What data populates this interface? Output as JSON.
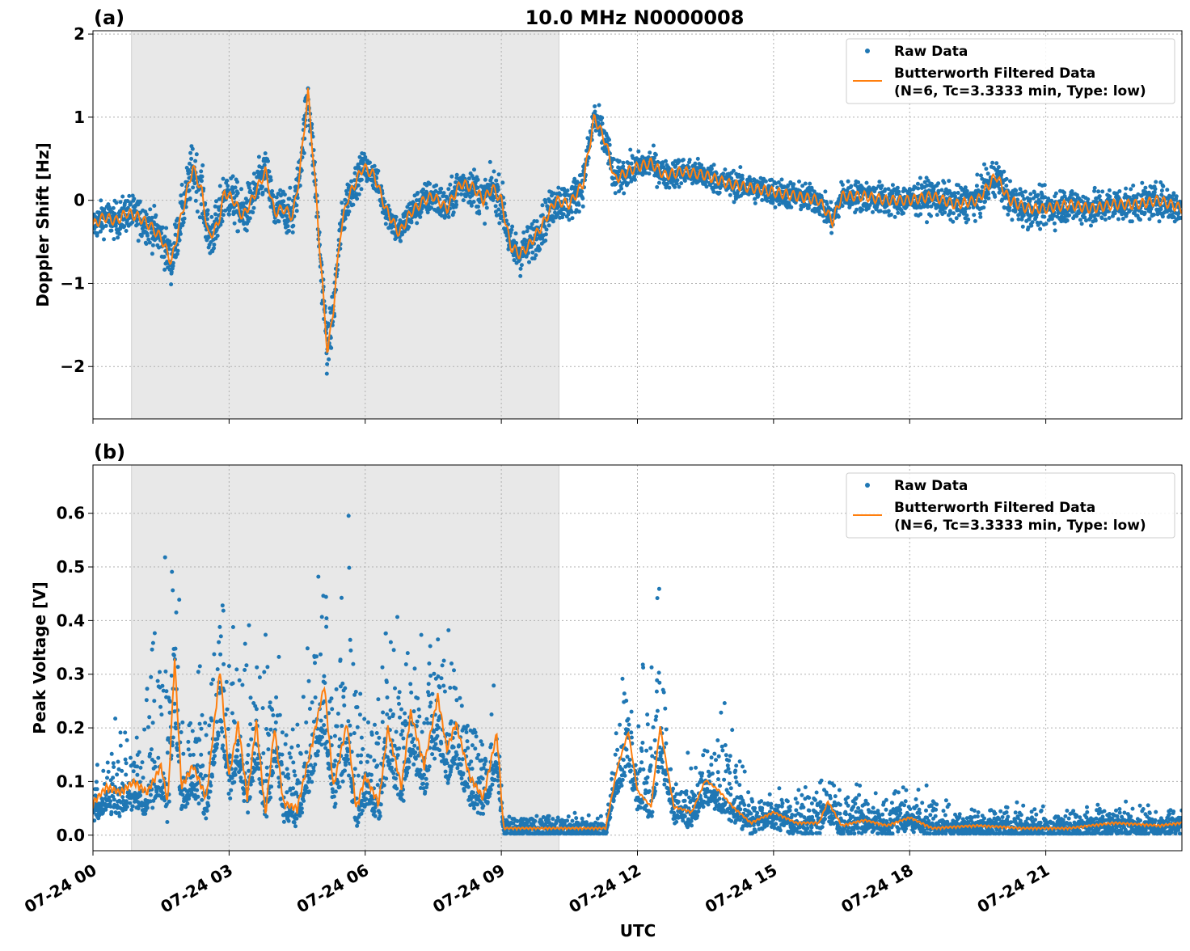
{
  "title": "10.0 MHz N0000008",
  "xlabel": "UTC",
  "x_ticks": [
    "07-24 00",
    "07-24 03",
    "07-24 06",
    "07-24 09",
    "07-24 12",
    "07-24 15",
    "07-24 18",
    "07-24 21"
  ],
  "x_tick_hours": [
    0,
    3,
    6,
    9,
    12,
    15,
    18,
    21
  ],
  "x_range_hours": [
    0,
    24
  ],
  "shaded_interval_hours": [
    0.85,
    10.27
  ],
  "colors": {
    "raw": "#1f77b4",
    "filtered": "#ff7f0e",
    "shade": "#e8e8e8",
    "grid": "#b0b0b0"
  },
  "legend": {
    "raw": "Raw Data",
    "filtered_line1": "Butterworth Filtered Data",
    "filtered_line2": "(N=6, Tc=3.3333 min, Type: low)",
    "placement": "upper right"
  },
  "chart_data": [
    {
      "panel_label": "(a)",
      "type": "scatter+line",
      "ylabel": "Doppler Shift [Hz]",
      "ylim": [
        -2.63,
        2.04
      ],
      "y_ticks": [
        -2,
        -1,
        0,
        1,
        2
      ],
      "y_tick_labels": [
        "−2",
        "−1",
        "0",
        "1",
        "2"
      ],
      "grid": true,
      "filtered": [
        [
          0,
          -0.3
        ],
        [
          0.25,
          -0.2
        ],
        [
          0.5,
          -0.25
        ],
        [
          0.75,
          -0.15
        ],
        [
          1.0,
          -0.2
        ],
        [
          1.25,
          -0.3
        ],
        [
          1.5,
          -0.45
        ],
        [
          1.73,
          -0.75
        ],
        [
          1.9,
          -0.3
        ],
        [
          2.2,
          0.4
        ],
        [
          2.4,
          0.1
        ],
        [
          2.55,
          -0.45
        ],
        [
          2.75,
          -0.3
        ],
        [
          2.9,
          0.1
        ],
        [
          3.1,
          0.0
        ],
        [
          3.3,
          -0.2
        ],
        [
          3.5,
          0.0
        ],
        [
          3.8,
          0.35
        ],
        [
          4.0,
          -0.15
        ],
        [
          4.2,
          -0.1
        ],
        [
          4.4,
          -0.2
        ],
        [
          4.55,
          0.3
        ],
        [
          4.74,
          1.3
        ],
        [
          4.9,
          0.2
        ],
        [
          5.0,
          -0.6
        ],
        [
          5.17,
          -1.85
        ],
        [
          5.3,
          -1.3
        ],
        [
          5.45,
          -0.4
        ],
        [
          5.6,
          0.0
        ],
        [
          5.95,
          0.4
        ],
        [
          6.2,
          0.3
        ],
        [
          6.45,
          -0.1
        ],
        [
          6.75,
          -0.4
        ],
        [
          7.0,
          -0.15
        ],
        [
          7.3,
          0.0
        ],
        [
          7.5,
          0.05
        ],
        [
          7.8,
          -0.1
        ],
        [
          8.1,
          0.2
        ],
        [
          8.4,
          0.15
        ],
        [
          8.6,
          0.0
        ],
        [
          8.8,
          0.15
        ],
        [
          9.0,
          0.0
        ],
        [
          9.2,
          -0.55
        ],
        [
          9.4,
          -0.65
        ],
        [
          9.6,
          -0.55
        ],
        [
          9.9,
          -0.3
        ],
        [
          10.2,
          0.0
        ],
        [
          10.5,
          -0.05
        ],
        [
          10.8,
          0.2
        ],
        [
          11.05,
          1.0
        ],
        [
          11.3,
          0.7
        ],
        [
          11.5,
          0.25
        ],
        [
          11.8,
          0.35
        ],
        [
          12.0,
          0.4
        ],
        [
          12.3,
          0.45
        ],
        [
          12.6,
          0.3
        ],
        [
          13.0,
          0.35
        ],
        [
          13.5,
          0.3
        ],
        [
          14.0,
          0.2
        ],
        [
          14.5,
          0.15
        ],
        [
          15.0,
          0.1
        ],
        [
          15.5,
          0.05
        ],
        [
          16.0,
          0.0
        ],
        [
          16.3,
          -0.25
        ],
        [
          16.5,
          0.05
        ],
        [
          17.0,
          0.05
        ],
        [
          17.5,
          0.0
        ],
        [
          18.0,
          0.0
        ],
        [
          18.5,
          0.05
        ],
        [
          19.0,
          -0.05
        ],
        [
          19.5,
          0.0
        ],
        [
          19.9,
          0.3
        ],
        [
          20.2,
          0.0
        ],
        [
          20.6,
          -0.1
        ],
        [
          21.0,
          -0.1
        ],
        [
          21.5,
          -0.05
        ],
        [
          22.0,
          -0.1
        ],
        [
          22.5,
          -0.05
        ],
        [
          23.0,
          -0.05
        ],
        [
          23.5,
          0.0
        ],
        [
          24.0,
          -0.1
        ]
      ],
      "raw_spread": [
        [
          0,
          0.35
        ],
        [
          1.7,
          0.45
        ],
        [
          2.2,
          0.55
        ],
        [
          4.7,
          0.45
        ],
        [
          5.17,
          0.55
        ],
        [
          6.0,
          0.3
        ],
        [
          9.3,
          0.45
        ],
        [
          10.5,
          0.4
        ],
        [
          11.1,
          0.4
        ],
        [
          12,
          0.3
        ],
        [
          16,
          0.3
        ],
        [
          19.9,
          0.4
        ],
        [
          24,
          0.35
        ]
      ]
    },
    {
      "panel_label": "(b)",
      "type": "scatter+line",
      "ylabel": "Peak Voltage [V]",
      "ylim": [
        -0.029,
        0.69
      ],
      "y_ticks": [
        0.0,
        0.1,
        0.2,
        0.3,
        0.4,
        0.5,
        0.6
      ],
      "y_tick_labels": [
        "0.0",
        "0.1",
        "0.2",
        "0.3",
        "0.4",
        "0.5",
        "0.6"
      ],
      "grid": true,
      "filtered": [
        [
          0,
          0.05
        ],
        [
          0.3,
          0.08
        ],
        [
          0.6,
          0.07
        ],
        [
          0.9,
          0.09
        ],
        [
          1.2,
          0.07
        ],
        [
          1.5,
          0.12
        ],
        [
          1.65,
          0.05
        ],
        [
          1.8,
          0.32
        ],
        [
          1.95,
          0.08
        ],
        [
          2.2,
          0.12
        ],
        [
          2.5,
          0.06
        ],
        [
          2.8,
          0.3
        ],
        [
          3.0,
          0.1
        ],
        [
          3.2,
          0.2
        ],
        [
          3.4,
          0.06
        ],
        [
          3.6,
          0.2
        ],
        [
          3.8,
          0.03
        ],
        [
          4.0,
          0.19
        ],
        [
          4.2,
          0.05
        ],
        [
          4.5,
          0.04
        ],
        [
          4.8,
          0.15
        ],
        [
          5.1,
          0.27
        ],
        [
          5.3,
          0.08
        ],
        [
          5.6,
          0.2
        ],
        [
          5.8,
          0.04
        ],
        [
          6.0,
          0.1
        ],
        [
          6.3,
          0.05
        ],
        [
          6.5,
          0.19
        ],
        [
          6.8,
          0.08
        ],
        [
          7.0,
          0.22
        ],
        [
          7.3,
          0.12
        ],
        [
          7.6,
          0.25
        ],
        [
          7.8,
          0.15
        ],
        [
          8.0,
          0.2
        ],
        [
          8.3,
          0.1
        ],
        [
          8.6,
          0.06
        ],
        [
          8.9,
          0.18
        ],
        [
          9.05,
          0.01
        ],
        [
          9.5,
          0.01
        ],
        [
          10.5,
          0.01
        ],
        [
          11.3,
          0.01
        ],
        [
          11.55,
          0.12
        ],
        [
          11.8,
          0.19
        ],
        [
          12.0,
          0.08
        ],
        [
          12.3,
          0.05
        ],
        [
          12.5,
          0.2
        ],
        [
          12.8,
          0.05
        ],
        [
          13.2,
          0.04
        ],
        [
          13.5,
          0.1
        ],
        [
          13.8,
          0.08
        ],
        [
          14.1,
          0.05
        ],
        [
          14.5,
          0.02
        ],
        [
          15.0,
          0.04
        ],
        [
          15.5,
          0.02
        ],
        [
          16.0,
          0.02
        ],
        [
          16.2,
          0.06
        ],
        [
          16.5,
          0.015
        ],
        [
          17.0,
          0.025
        ],
        [
          17.5,
          0.015
        ],
        [
          18.0,
          0.03
        ],
        [
          18.5,
          0.01
        ],
        [
          19.5,
          0.015
        ],
        [
          20.5,
          0.01
        ],
        [
          21.5,
          0.01
        ],
        [
          22.5,
          0.02
        ],
        [
          23.5,
          0.015
        ],
        [
          24,
          0.02
        ]
      ],
      "raw_peaks": [
        [
          0,
          0.13
        ],
        [
          0.5,
          0.22
        ],
        [
          1.0,
          0.2
        ],
        [
          1.8,
          0.65
        ],
        [
          2.0,
          0.25
        ],
        [
          2.8,
          0.5
        ],
        [
          3.0,
          0.42
        ],
        [
          3.7,
          0.37
        ],
        [
          4.1,
          0.34
        ],
        [
          4.5,
          0.2
        ],
        [
          5.1,
          0.6
        ],
        [
          5.3,
          0.3
        ],
        [
          5.6,
          0.64
        ],
        [
          6.0,
          0.25
        ],
        [
          6.6,
          0.46
        ],
        [
          7.0,
          0.33
        ],
        [
          7.5,
          0.42
        ],
        [
          8.0,
          0.38
        ],
        [
          8.5,
          0.26
        ],
        [
          8.9,
          0.33
        ],
        [
          9.05,
          0.03
        ],
        [
          11.3,
          0.03
        ],
        [
          11.6,
          0.32
        ],
        [
          11.8,
          0.36
        ],
        [
          12.0,
          0.26
        ],
        [
          12.5,
          0.51
        ],
        [
          12.8,
          0.12
        ],
        [
          13.5,
          0.17
        ],
        [
          14.0,
          0.26
        ],
        [
          14.5,
          0.08
        ],
        [
          15.0,
          0.07
        ],
        [
          16.2,
          0.12
        ],
        [
          17.0,
          0.08
        ],
        [
          18.0,
          0.1
        ],
        [
          19.0,
          0.05
        ],
        [
          20.0,
          0.05
        ],
        [
          22.5,
          0.05
        ],
        [
          24,
          0.05
        ]
      ]
    }
  ]
}
